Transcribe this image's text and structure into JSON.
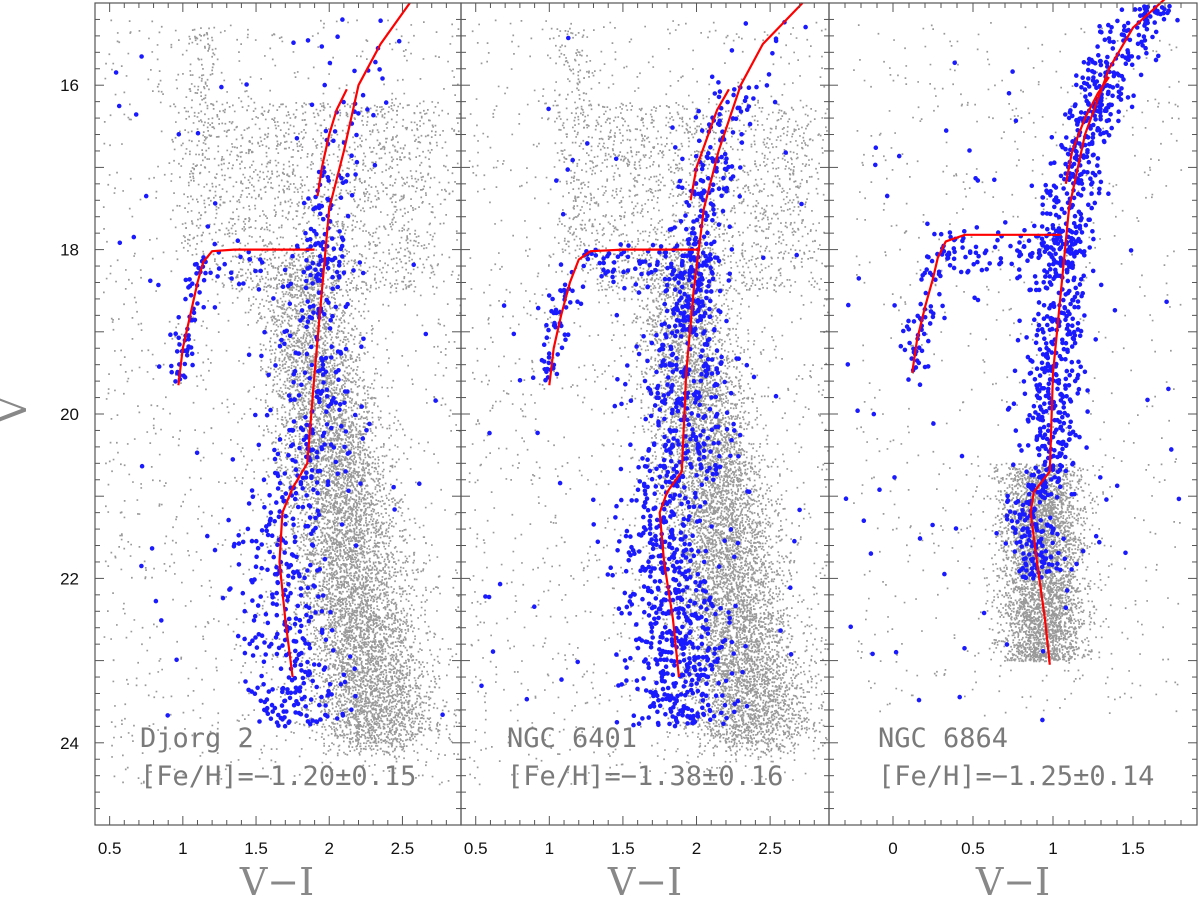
{
  "chart_data": [
    {
      "type": "scatter",
      "panel": "Djorg 2",
      "name_label": "Djorg 2",
      "feh_label": "[Fe/H]=−1.20±0.15",
      "xlabel": "V−I",
      "ylabel": "V",
      "xlim": [
        0.4,
        2.9
      ],
      "ylim": [
        25.0,
        15.0
      ],
      "x_ticks": [
        0.5,
        1,
        1.5,
        2,
        2.5
      ],
      "x_tick_labels": [
        "0.5",
        "1",
        "1.5",
        "2",
        "2.5"
      ],
      "y_ticks": [
        16,
        18,
        20,
        22,
        24
      ],
      "y_tick_labels": [
        "16",
        "18",
        "20",
        "22",
        "24"
      ],
      "series": [
        {
          "name": "field stars",
          "color": "#999999"
        },
        {
          "name": "cluster members",
          "color": "#1a1aff"
        },
        {
          "name": "isochrone RGB",
          "color": "#ff0000",
          "points": [
            [
              1.75,
              23.2
            ],
            [
              1.7,
              22.5
            ],
            [
              1.66,
              21.8
            ],
            [
              1.68,
              21.2
            ],
            [
              1.75,
              20.9
            ],
            [
              1.85,
              20.6
            ],
            [
              1.9,
              19.5
            ],
            [
              1.95,
              18.5
            ],
            [
              2.0,
              17.5
            ],
            [
              2.1,
              16.8
            ],
            [
              2.2,
              16.0
            ],
            [
              2.35,
              15.5
            ],
            [
              2.55,
              15.0
            ]
          ]
        },
        {
          "name": "isochrone AGB",
          "color": "#ff0000",
          "points": [
            [
              1.92,
              17.35
            ],
            [
              1.95,
              17.0
            ],
            [
              2.0,
              16.6
            ],
            [
              2.05,
              16.3
            ],
            [
              2.12,
              16.05
            ]
          ]
        },
        {
          "name": "isochrone HB",
          "color": "#ff0000",
          "points": [
            [
              0.97,
              19.65
            ],
            [
              1.0,
              19.2
            ],
            [
              1.05,
              18.8
            ],
            [
              1.1,
              18.4
            ],
            [
              1.14,
              18.15
            ],
            [
              1.2,
              18.02
            ],
            [
              1.35,
              18.0
            ],
            [
              1.9,
              18.0
            ]
          ]
        }
      ]
    },
    {
      "type": "scatter",
      "panel": "NGC 6401",
      "name_label": "NGC 6401",
      "feh_label": "[Fe/H]=−1.38±0.16",
      "xlabel": "V−I",
      "ylabel": "V",
      "xlim": [
        0.4,
        2.9
      ],
      "ylim": [
        25.0,
        15.0
      ],
      "x_ticks": [
        0.5,
        1,
        1.5,
        2,
        2.5
      ],
      "x_tick_labels": [
        "0.5",
        "1",
        "1.5",
        "2",
        "2.5"
      ],
      "series": [
        {
          "name": "field stars",
          "color": "#999999"
        },
        {
          "name": "cluster members",
          "color": "#1a1aff"
        },
        {
          "name": "isochrone RGB",
          "color": "#ff0000",
          "points": [
            [
              1.88,
              23.2
            ],
            [
              1.84,
              22.5
            ],
            [
              1.78,
              21.8
            ],
            [
              1.75,
              21.2
            ],
            [
              1.8,
              20.95
            ],
            [
              1.9,
              20.7
            ],
            [
              1.93,
              19.5
            ],
            [
              1.98,
              18.5
            ],
            [
              2.05,
              17.5
            ],
            [
              2.15,
              16.8
            ],
            [
              2.3,
              16.0
            ],
            [
              2.45,
              15.5
            ],
            [
              2.72,
              15.0
            ]
          ]
        },
        {
          "name": "isochrone AGB",
          "color": "#ff0000",
          "points": [
            [
              1.96,
              17.4
            ],
            [
              2.0,
              17.0
            ],
            [
              2.08,
              16.6
            ],
            [
              2.14,
              16.3
            ],
            [
              2.22,
              16.05
            ]
          ]
        },
        {
          "name": "isochrone HB",
          "color": "#ff0000",
          "points": [
            [
              1.0,
              19.65
            ],
            [
              1.03,
              19.2
            ],
            [
              1.08,
              18.8
            ],
            [
              1.14,
              18.4
            ],
            [
              1.2,
              18.12
            ],
            [
              1.28,
              18.02
            ],
            [
              1.5,
              18.0
            ],
            [
              2.02,
              18.0
            ]
          ]
        }
      ]
    },
    {
      "type": "scatter",
      "panel": "NGC 6864",
      "name_label": "NGC 6864",
      "feh_label": "[Fe/H]=−1.25±0.14",
      "xlabel": "V−I",
      "ylabel": "V",
      "xlim": [
        -0.4,
        1.9
      ],
      "ylim": [
        25.0,
        15.0
      ],
      "x_ticks": [
        0,
        0.5,
        1,
        1.5
      ],
      "x_tick_labels": [
        "0",
        "0.5",
        "1",
        "1.5"
      ],
      "series": [
        {
          "name": "field stars",
          "color": "#999999"
        },
        {
          "name": "cluster members",
          "color": "#1a1aff"
        },
        {
          "name": "isochrone RGB",
          "color": "#ff0000",
          "points": [
            [
              0.98,
              23.05
            ],
            [
              0.95,
              22.5
            ],
            [
              0.9,
              21.8
            ],
            [
              0.86,
              21.2
            ],
            [
              0.88,
              20.95
            ],
            [
              0.98,
              20.7
            ],
            [
              1.0,
              19.5
            ],
            [
              1.05,
              18.5
            ],
            [
              1.1,
              17.5
            ],
            [
              1.2,
              16.6
            ],
            [
              1.35,
              15.8
            ],
            [
              1.5,
              15.3
            ],
            [
              1.7,
              14.95
            ]
          ]
        },
        {
          "name": "isochrone AGB",
          "color": "#ff0000",
          "points": [
            [
              1.08,
              17.2
            ],
            [
              1.12,
              16.8
            ],
            [
              1.2,
              16.4
            ],
            [
              1.28,
              16.1
            ],
            [
              1.35,
              15.9
            ]
          ]
        },
        {
          "name": "isochrone HB",
          "color": "#ff0000",
          "points": [
            [
              0.12,
              19.5
            ],
            [
              0.15,
              19.1
            ],
            [
              0.2,
              18.7
            ],
            [
              0.25,
              18.35
            ],
            [
              0.28,
              18.1
            ],
            [
              0.33,
              17.9
            ],
            [
              0.45,
              17.82
            ],
            [
              1.05,
              17.82
            ]
          ]
        }
      ]
    }
  ]
}
